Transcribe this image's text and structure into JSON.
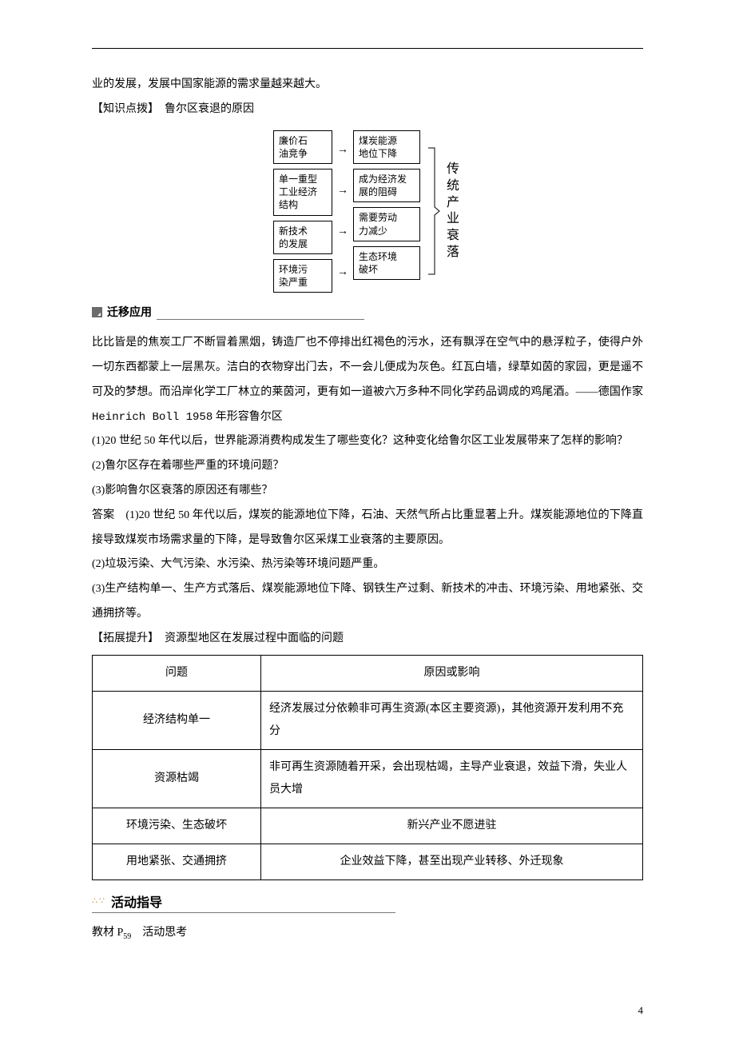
{
  "intro_tail": "业的发展，发展中国家能源的需求量越来越大。",
  "knowledge_label": "【知识点拨】　鲁尔区衰退的原因",
  "flowchart": {
    "left": [
      "廉价石\n油竞争",
      "单一重型\n工业经济\n结构",
      "新技术\n的发展",
      "环境污\n染严重"
    ],
    "right": [
      "煤炭能源\n地位下降",
      "成为经济发\n展的阻碍",
      "需要劳动\n力减少",
      "生态环境\n破坏"
    ],
    "result": "传统产业衰落",
    "arrow": "→",
    "bracket_color": "#000000"
  },
  "migration_label": "迁移应用",
  "passage": "比比皆是的焦炭工厂不断冒着黑烟，铸造厂也不停排出红褐色的污水，还有飘浮在空气中的悬浮粒子，使得户外一切东西都蒙上一层黑灰。洁白的衣物穿出门去，不一会儿便成为灰色。红瓦白墙，绿草如茵的家园，更是遥不可及的梦想。而沿岸化学工厂林立的莱茵河，更有如一道被六万多种不同化学药品调成的鸡尾酒。——德国作家 Heinrich Boll 1958 年形容鲁尔区",
  "q1": "(1)20 世纪 50 年代以后，世界能源消费构成发生了哪些变化？这种变化给鲁尔区工业发展带来了怎样的影响？",
  "q2": "(2)鲁尔区存在着哪些严重的环境问题？",
  "q3": "(3)影响鲁尔区衰落的原因还有哪些？",
  "a_label": "答案　",
  "a1": "(1)20 世纪 50 年代以后，煤炭的能源地位下降，石油、天然气所占比重显著上升。煤炭能源地位的下降直接导致煤炭市场需求量的下降，是导致鲁尔区采煤工业衰落的主要原因。",
  "a2": "(2)垃圾污染、大气污染、水污染、热污染等环境问题严重。",
  "a3": "(3)生产结构单一、生产方式落后、煤炭能源地位下降、钢铁生产过剩、新技术的冲击、环境污染、用地紧张、交通拥挤等。",
  "expand_label": "【拓展提升】　资源型地区在发展过程中面临的问题",
  "table": {
    "headers": [
      "问题",
      "原因或影响"
    ],
    "rows": [
      {
        "problem": "经济结构单一",
        "reason": "经济发展过分依赖非可再生资源(本区主要资源)，其他资源开发利用不充分",
        "align": "left"
      },
      {
        "problem": "资源枯竭",
        "reason": "非可再生资源随着开采，会出现枯竭，主导产业衰退，效益下滑，失业人员大增",
        "align": "left"
      },
      {
        "problem": "环境污染、生态破坏",
        "reason": "新兴产业不愿进驻",
        "align": "center"
      },
      {
        "problem": "用地紧张、交通拥挤",
        "reason": "企业效益下降，甚至出现产业转移、外迁现象",
        "align": "center"
      }
    ]
  },
  "activity_title": "活动指导",
  "textbook_ref_pre": "教材 P",
  "textbook_ref_sub": "59",
  "textbook_ref_post": "　活动思考",
  "page_number": "4"
}
